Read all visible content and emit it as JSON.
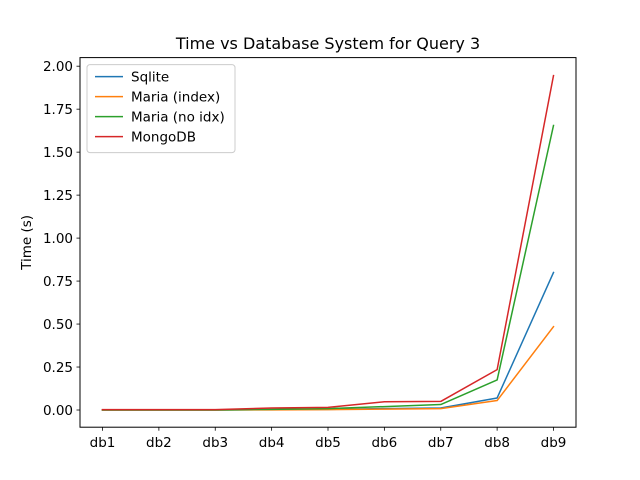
{
  "chart_data": {
    "type": "line",
    "title": "Time vs Database System for Query 3",
    "xlabel": "",
    "ylabel": "Time (s)",
    "categories": [
      "db1",
      "db2",
      "db3",
      "db4",
      "db5",
      "db6",
      "db7",
      "db8",
      "db9"
    ],
    "ylim": [
      -0.1,
      2.05
    ],
    "yticks": [
      "0.00",
      "0.25",
      "0.50",
      "0.75",
      "1.00",
      "1.25",
      "1.50",
      "1.75",
      "2.00"
    ],
    "grid": false,
    "legend_position": "top-left",
    "series": [
      {
        "name": "Sqlite",
        "color": "#1f77b4",
        "values": [
          0.0,
          0.0,
          0.0,
          0.002,
          0.004,
          0.008,
          0.012,
          0.07,
          0.8
        ]
      },
      {
        "name": "Maria (index)",
        "color": "#ff7f0e",
        "values": [
          0.0,
          0.0,
          0.0,
          0.001,
          0.002,
          0.005,
          0.008,
          0.055,
          0.485
        ]
      },
      {
        "name": "Maria (no idx)",
        "color": "#2ca02c",
        "values": [
          0.0,
          0.0,
          0.0,
          0.004,
          0.008,
          0.02,
          0.032,
          0.175,
          1.655
        ]
      },
      {
        "name": "MongoDB",
        "color": "#d62728",
        "values": [
          0.002,
          0.002,
          0.002,
          0.012,
          0.015,
          0.048,
          0.05,
          0.235,
          1.945
        ]
      }
    ]
  }
}
